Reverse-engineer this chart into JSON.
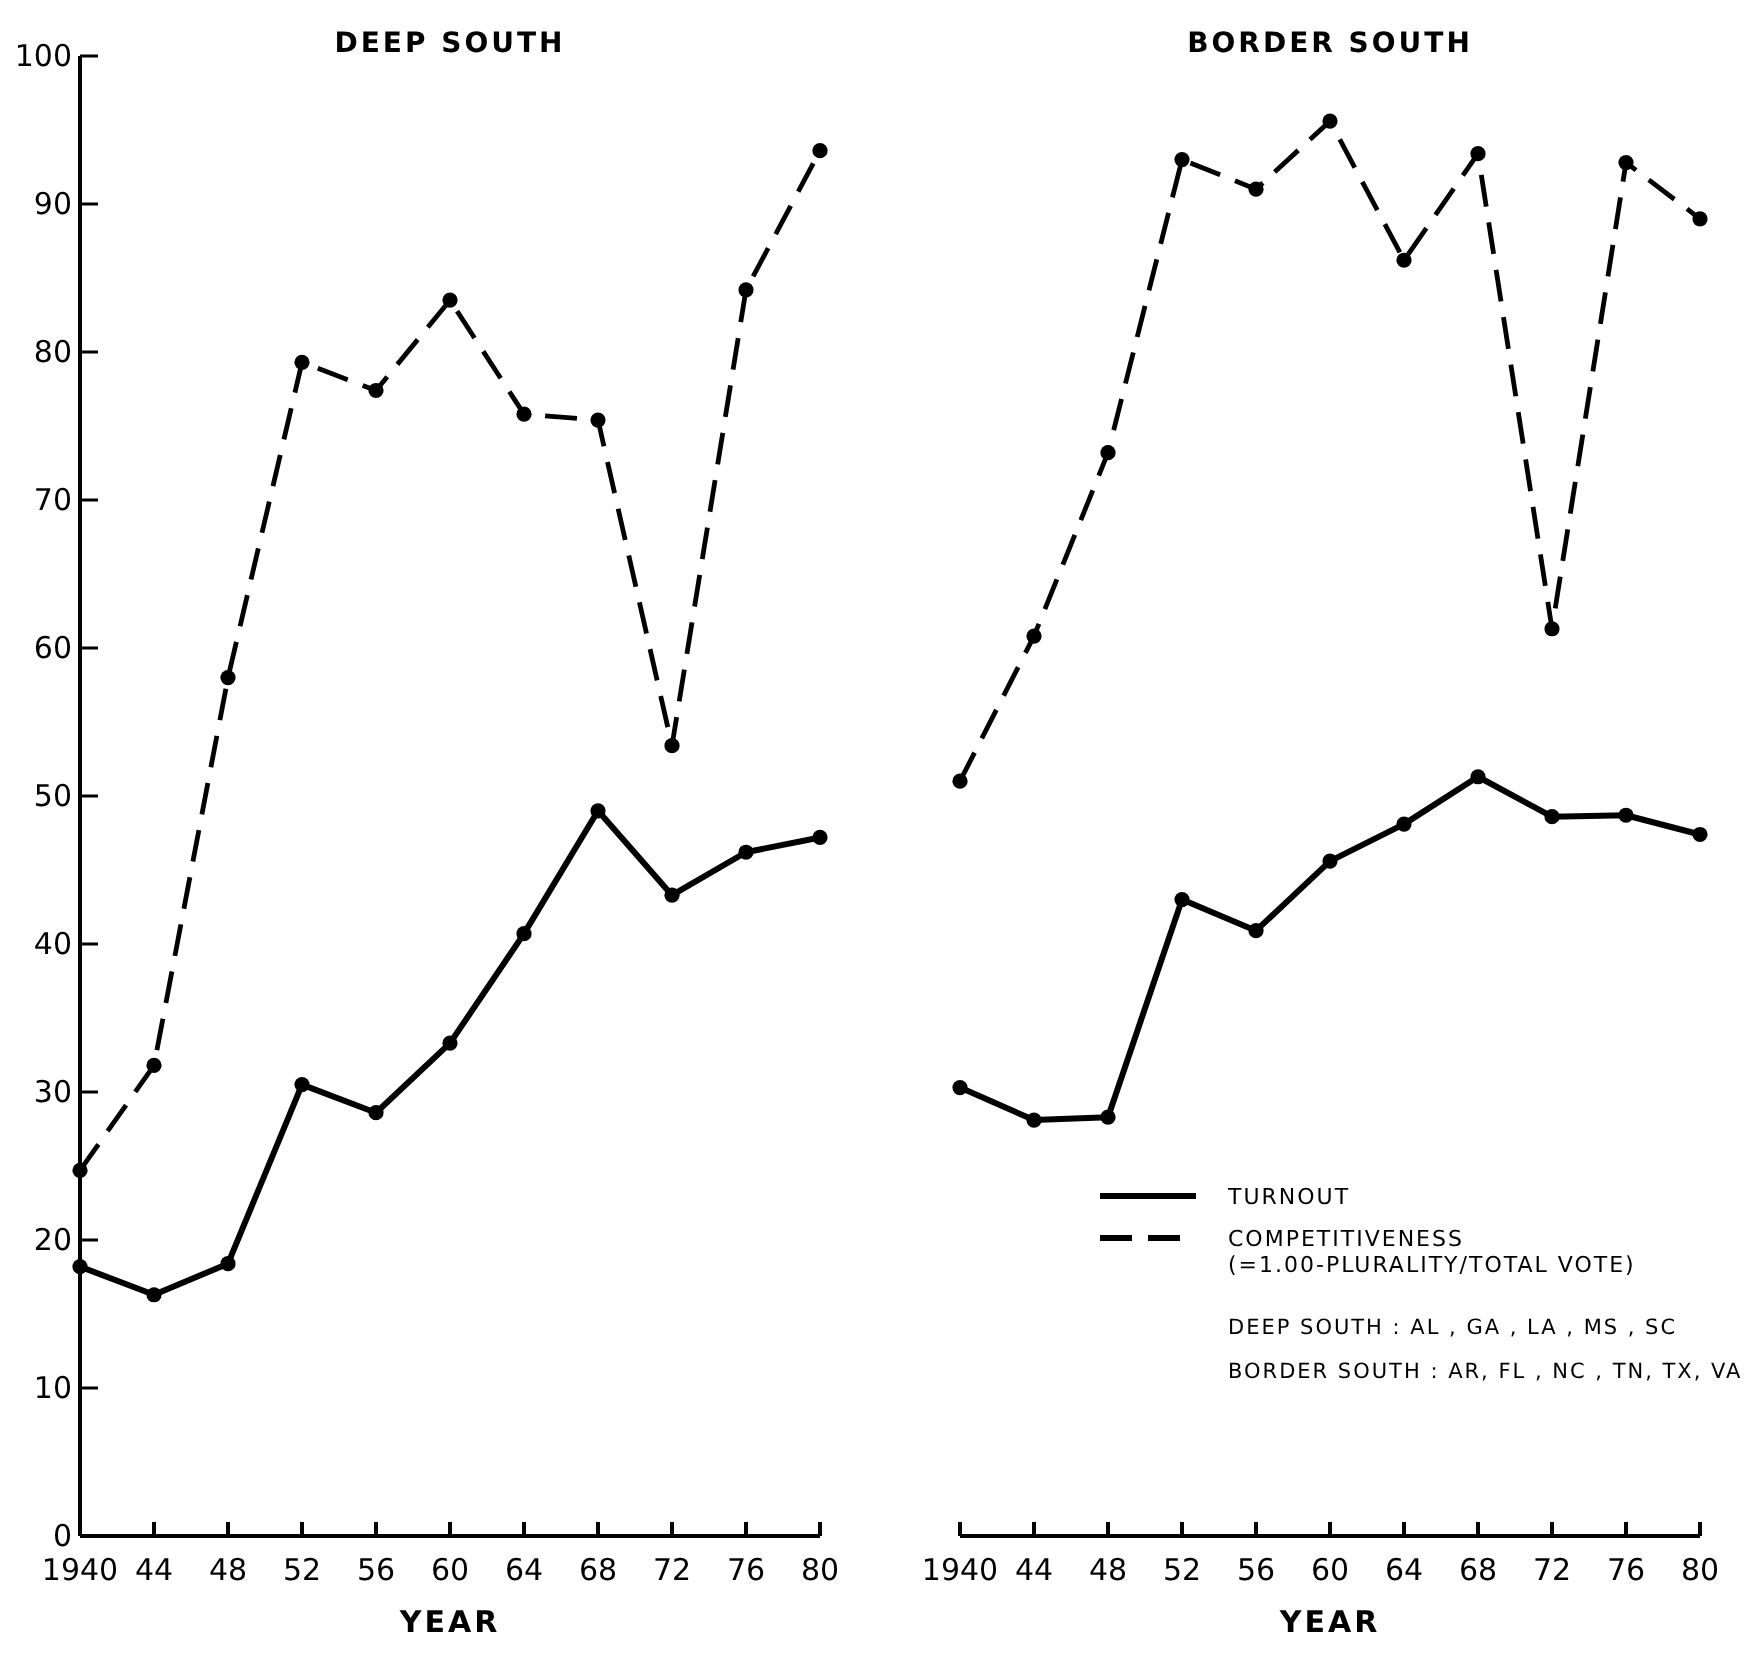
{
  "chart_data": [
    {
      "type": "line",
      "title": "DEEP SOUTH",
      "xlabel": "YEAR",
      "x": [
        1940,
        1944,
        1948,
        1952,
        1956,
        1960,
        1964,
        1968,
        1972,
        1976,
        1980
      ],
      "xlim": [
        1940,
        1980
      ],
      "xticks": [
        1940,
        {
          "value": 1944,
          "label": "44"
        },
        {
          "value": 1948,
          "label": "48"
        },
        {
          "value": 1952,
          "label": "52"
        },
        {
          "value": 1956,
          "label": "56"
        },
        {
          "value": 1960,
          "label": "60"
        },
        {
          "value": 1964,
          "label": "64"
        },
        {
          "value": 1968,
          "label": "68"
        },
        {
          "value": 1972,
          "label": "72"
        },
        {
          "value": 1976,
          "label": "76"
        },
        {
          "value": 1980,
          "label": "80"
        }
      ],
      "ylim": [
        0,
        100
      ],
      "yticks": [
        0,
        10,
        20,
        30,
        40,
        50,
        60,
        70,
        80,
        90,
        100
      ],
      "grid": false,
      "legend": false,
      "marker": "circle",
      "series": [
        {
          "color": "#000000",
          "line_style": "solid",
          "values": [
            18.2,
            16.3,
            18.4,
            30.5,
            28.6,
            33.3,
            40.7,
            49,
            43.3,
            46.2,
            47.2
          ]
        },
        {
          "color": "#000000",
          "line_style": "dashed",
          "values": [
            24.7,
            31.8,
            58,
            79.3,
            77.4,
            83.5,
            75.8,
            75.4,
            53.4,
            84.2,
            93.6
          ]
        }
      ]
    },
    {
      "type": "line",
      "title": "BORDER SOUTH",
      "xlabel": "YEAR",
      "x": [
        1940,
        1944,
        1948,
        1952,
        1956,
        1960,
        1964,
        1968,
        1972,
        1976,
        1980
      ],
      "xlim": [
        1940,
        1980
      ],
      "xticks": [
        1940,
        {
          "value": 1944,
          "label": "44"
        },
        {
          "value": 1948,
          "label": "48"
        },
        {
          "value": 1952,
          "label": "52"
        },
        {
          "value": 1956,
          "label": "56"
        },
        {
          "value": 1960,
          "label": "60"
        },
        {
          "value": 1964,
          "label": "64"
        },
        {
          "value": 1968,
          "label": "68"
        },
        {
          "value": 1972,
          "label": "72"
        },
        {
          "value": 1976,
          "label": "76"
        },
        {
          "value": 1980,
          "label": "80"
        }
      ],
      "ylim": [
        0,
        100
      ],
      "tick_labels": "x",
      "grid": false,
      "legend": "bottom right",
      "marker": "circle",
      "annotations": [
        "DEEP SOUTH : AL , GA , LA , MS , SC",
        "BORDER SOUTH : AR, FL , NC , TN, TX, VA"
      ],
      "series": [
        {
          "name": "TURNOUT",
          "color": "#000000",
          "line_style": "solid",
          "values": [
            30.3,
            28.1,
            28.3,
            43,
            40.9,
            45.6,
            48.1,
            51.3,
            48.6,
            48.7,
            47.4
          ]
        },
        {
          "name": "COMPETITIVENESS (=1.00-PLURALITY/TOTAL VOTE)",
          "color": "#000000",
          "line_style": "dashed",
          "values": [
            51,
            60.8,
            73.2,
            93,
            91,
            95.6,
            86.2,
            93.4,
            61.3,
            92.8,
            89
          ]
        }
      ]
    }
  ]
}
